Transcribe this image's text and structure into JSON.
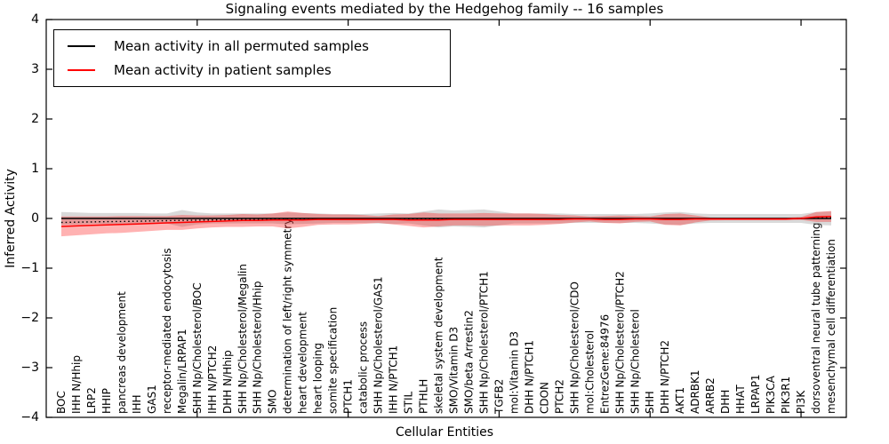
{
  "title": "Signaling events mediated by the Hedgehog family -- 16 samples",
  "axes": {
    "xlabel": "Cellular Entities",
    "ylabel": "Inferred Activity"
  },
  "legend": {
    "items": [
      {
        "label": "Mean activity in all permuted samples",
        "color": "#000000"
      },
      {
        "label": "Mean activity in patient samples",
        "color": "#ff0000"
      }
    ]
  },
  "chart_data": {
    "type": "line",
    "title": "Signaling events mediated by the Hedgehog family -- 16 samples",
    "xlabel": "Cellular Entities",
    "ylabel": "Inferred Activity",
    "sample_count_shown_in_title": "16 samples",
    "grid": false,
    "legend_position": "upper left",
    "ylim": [
      -4,
      4
    ],
    "yticks": [
      4,
      3,
      2,
      1,
      0,
      -1,
      -2,
      -3,
      -4
    ],
    "xlim": [
      0,
      53
    ],
    "xticks": [
      10,
      20,
      30,
      40,
      50
    ],
    "categories": [
      "BOC",
      "IHH N/Hhip",
      "LRP2",
      "HHIP",
      "pancreas development",
      "IHH",
      "GAS1",
      "receptor-mediated endocytosis",
      "Megalin/LRPAP1",
      "SHH Np/Cholesterol/BOC",
      "IHH N/PTCH2",
      "DHH N/Hhip",
      "SHH Np/Cholesterol/Megalin",
      "SHH Np/Cholesterol/Hhip",
      "SMO",
      "determination of left/right symmetry",
      "heart development",
      "heart looping",
      "somite specification",
      "PTCH1",
      "catabolic process",
      "SHH Np/Cholesterol/GAS1",
      "IHH N/PTCH1",
      "STIL",
      "PTHLH",
      "skeletal system development",
      "SMO/Vitamin D3",
      "SMO/beta Arrestin2",
      "SHH Np/Cholesterol/PTCH1",
      "TGFB2",
      "mol:Vitamin D3",
      "DHH N/PTCH1",
      "CDON",
      "PTCH2",
      "SHH Np/Cholesterol/CDO",
      "mol:Cholesterol",
      "EntrezGene:84976",
      "SHH Np/Cholesterol/PTCH2",
      "SHH Np/Cholesterol",
      "SHH",
      "DHH N/PTCH2",
      "AKT1",
      "ADRBK1",
      "ARRB2",
      "DHH",
      "HHAT",
      "LRPAP1",
      "PIK3CA",
      "PIK3R1",
      "PI3K",
      "dorsoventral neural tube patterning",
      "mesenchymal cell differentiation"
    ],
    "series": [
      {
        "name": "Mean activity in all permuted samples",
        "color": "#000000",
        "style": "solid",
        "values": [
          0,
          0,
          0,
          0,
          0,
          0,
          0,
          0,
          0,
          0,
          0,
          0,
          0,
          0,
          0,
          0,
          0,
          0,
          0,
          0,
          0,
          0,
          0,
          0,
          0,
          0,
          0,
          0,
          0,
          0,
          0,
          0,
          0,
          0,
          0,
          0,
          0,
          0,
          0,
          0,
          0,
          0,
          0,
          0,
          0,
          0,
          0,
          0,
          0,
          0,
          0,
          0
        ]
      },
      {
        "name": "Mean activity in patient samples",
        "color": "#ff0000",
        "style": "solid",
        "values": [
          -0.16,
          -0.15,
          -0.14,
          -0.13,
          -0.12,
          -0.11,
          -0.1,
          -0.09,
          -0.08,
          -0.07,
          -0.06,
          -0.05,
          -0.04,
          -0.04,
          -0.03,
          -0.03,
          -0.03,
          -0.02,
          -0.02,
          -0.02,
          -0.02,
          -0.02,
          -0.02,
          -0.03,
          -0.03,
          -0.03,
          -0.02,
          -0.02,
          -0.02,
          -0.02,
          -0.02,
          -0.02,
          -0.02,
          -0.02,
          -0.01,
          -0.01,
          -0.02,
          -0.02,
          -0.01,
          -0.01,
          -0.02,
          -0.02,
          -0.01,
          -0.01,
          -0.01,
          -0.01,
          -0.01,
          -0.01,
          -0.01,
          0,
          0.03,
          0.04
        ]
      }
    ],
    "bands": [
      {
        "name": "permuted samples mean ± std",
        "color": "rgba(128,128,128,0.30)",
        "center_series": 0,
        "half_widths": [
          0.13,
          0.12,
          0.11,
          0.11,
          0.11,
          0.11,
          0.1,
          0.1,
          0.17,
          0.12,
          0.1,
          0.1,
          0.1,
          0.1,
          0.1,
          0.12,
          0.11,
          0.1,
          0.09,
          0.09,
          0.09,
          0.1,
          0.11,
          0.1,
          0.14,
          0.18,
          0.16,
          0.17,
          0.18,
          0.14,
          0.1,
          0.1,
          0.1,
          0.1,
          0.09,
          0.09,
          0.09,
          0.09,
          0.09,
          0.1,
          0.12,
          0.13,
          0.1,
          0.09,
          0.09,
          0.09,
          0.09,
          0.09,
          0.09,
          0.09,
          0.13,
          0.14
        ]
      },
      {
        "name": "patient samples mean ± std",
        "color": "rgba(255,0,0,0.30)",
        "center_series": 1,
        "half_widths": [
          0.2,
          0.19,
          0.18,
          0.17,
          0.17,
          0.16,
          0.15,
          0.14,
          0.15,
          0.13,
          0.12,
          0.12,
          0.13,
          0.12,
          0.13,
          0.17,
          0.14,
          0.11,
          0.1,
          0.1,
          0.09,
          0.07,
          0.1,
          0.12,
          0.15,
          0.13,
          0.12,
          0.12,
          0.13,
          0.12,
          0.12,
          0.12,
          0.11,
          0.09,
          0.07,
          0.05,
          0.07,
          0.08,
          0.06,
          0.05,
          0.11,
          0.12,
          0.07,
          0.03,
          0.025,
          0.025,
          0.025,
          0.025,
          0.025,
          0.03,
          0.1,
          0.11
        ]
      }
    ],
    "reference_line": {
      "style": "dotted",
      "color": "#000000",
      "description": "dotted black line running between the two mean curves near 0"
    }
  }
}
